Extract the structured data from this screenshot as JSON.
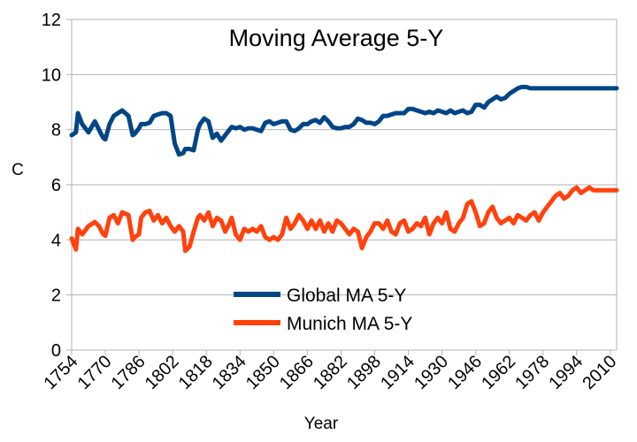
{
  "chart_data": {
    "type": "line",
    "title": "Moving Average 5-Y",
    "xlabel": "Year",
    "ylabel": "C",
    "xlim": [
      1754,
      2013
    ],
    "ylim": [
      0,
      12
    ],
    "y_ticks": [
      0,
      2,
      4,
      6,
      8,
      10,
      12
    ],
    "x_tick_labels": [
      "1754",
      "1770",
      "1786",
      "1802",
      "1818",
      "1834",
      "1850",
      "1866",
      "1882",
      "1898",
      "1914",
      "1930",
      "1946",
      "1962",
      "1978",
      "1994",
      "2010"
    ],
    "grid": "horizontal",
    "legend": "center-bottom",
    "series": [
      {
        "name": "Global MA 5-Y",
        "color": "#004586",
        "x": [
          1754,
          1756,
          1757,
          1759,
          1762,
          1765,
          1767,
          1769,
          1770,
          1772,
          1774,
          1776,
          1778,
          1781,
          1783,
          1784,
          1786,
          1787,
          1789,
          1791,
          1793,
          1795,
          1797,
          1799,
          1801,
          1803,
          1805,
          1807,
          1808,
          1810,
          1812,
          1814,
          1815,
          1817,
          1819,
          1821,
          1823,
          1825,
          1827,
          1829,
          1830,
          1832,
          1834,
          1836,
          1838,
          1840,
          1842,
          1844,
          1846,
          1848,
          1850,
          1852,
          1854,
          1856,
          1858,
          1860,
          1862,
          1864,
          1866,
          1868,
          1870,
          1872,
          1874,
          1876,
          1878,
          1880,
          1882,
          1884,
          1886,
          1888,
          1890,
          1892,
          1894,
          1896,
          1898,
          1900,
          1902,
          1904,
          1906,
          1908,
          1910,
          1912,
          1914,
          1916,
          1918,
          1920,
          1922,
          1924,
          1926,
          1928,
          1930,
          1932,
          1934,
          1936,
          1938,
          1940,
          1942,
          1944,
          1946,
          1948,
          1950,
          1952,
          1954,
          1956,
          1958,
          1960,
          1962,
          1964,
          1966,
          1968,
          1970,
          1972,
          1974,
          1976,
          1978,
          1980,
          1982,
          1984,
          1986,
          1988,
          1990,
          1992,
          1994,
          1996,
          1998,
          2000,
          2002,
          2004,
          2006,
          2008,
          2010,
          2013
        ],
        "values": [
          7.8,
          7.9,
          8.6,
          8.2,
          7.9,
          8.3,
          8.0,
          7.7,
          7.65,
          8.2,
          8.5,
          8.6,
          8.7,
          8.5,
          7.8,
          7.85,
          8.05,
          8.2,
          8.2,
          8.25,
          8.5,
          8.55,
          8.6,
          8.6,
          8.5,
          7.5,
          7.1,
          7.15,
          7.3,
          7.3,
          7.25,
          8.0,
          8.2,
          8.4,
          8.3,
          7.7,
          7.85,
          7.6,
          7.8,
          8.0,
          8.1,
          8.05,
          8.1,
          8.0,
          8.05,
          8.05,
          8.0,
          7.95,
          8.25,
          8.3,
          8.2,
          8.25,
          8.3,
          8.3,
          8.0,
          7.95,
          8.05,
          8.2,
          8.2,
          8.3,
          8.35,
          8.25,
          8.45,
          8.3,
          8.1,
          8.05,
          8.05,
          8.1,
          8.1,
          8.2,
          8.4,
          8.35,
          8.25,
          8.25,
          8.2,
          8.3,
          8.5,
          8.5,
          8.55,
          8.6,
          8.6,
          8.6,
          8.75,
          8.75,
          8.7,
          8.65,
          8.6,
          8.65,
          8.6,
          8.7,
          8.65,
          8.6,
          8.7,
          8.6,
          8.65,
          8.7,
          8.6,
          8.65,
          8.9,
          8.9,
          8.8,
          9.0,
          9.1,
          9.2,
          9.1,
          9.15,
          9.3,
          9.4,
          9.5,
          9.55,
          9.55,
          9.5,
          9.5,
          9.5,
          9.5,
          9.5,
          9.5,
          9.5,
          9.5,
          9.5,
          9.5,
          9.5,
          9.5,
          9.5,
          9.5,
          9.5,
          9.5,
          9.5,
          9.5,
          9.5,
          9.5,
          9.5
        ]
      },
      {
        "name": "Munich MA 5-Y",
        "color": "#ff420e",
        "x": [
          1754,
          1756,
          1757,
          1759,
          1762,
          1765,
          1767,
          1769,
          1770,
          1772,
          1774,
          1776,
          1778,
          1781,
          1783,
          1784,
          1786,
          1787,
          1789,
          1791,
          1793,
          1795,
          1797,
          1799,
          1801,
          1803,
          1805,
          1807,
          1808,
          1810,
          1812,
          1814,
          1815,
          1817,
          1819,
          1821,
          1823,
          1825,
          1827,
          1829,
          1830,
          1832,
          1834,
          1836,
          1838,
          1840,
          1842,
          1844,
          1846,
          1848,
          1850,
          1852,
          1854,
          1856,
          1858,
          1860,
          1862,
          1864,
          1866,
          1868,
          1870,
          1872,
          1874,
          1876,
          1878,
          1880,
          1882,
          1884,
          1886,
          1888,
          1890,
          1892,
          1894,
          1896,
          1898,
          1900,
          1902,
          1904,
          1906,
          1908,
          1910,
          1912,
          1914,
          1916,
          1918,
          1920,
          1922,
          1924,
          1926,
          1928,
          1930,
          1932,
          1934,
          1936,
          1938,
          1940,
          1942,
          1944,
          1946,
          1948,
          1950,
          1952,
          1954,
          1956,
          1958,
          1960,
          1962,
          1964,
          1966,
          1968,
          1970,
          1972,
          1974,
          1976,
          1978,
          1980,
          1982,
          1984,
          1986,
          1988,
          1990,
          1992,
          1994,
          1996,
          1998,
          2000,
          2002,
          2004,
          2006,
          2008,
          2010,
          2013
        ],
        "values": [
          4.05,
          3.65,
          4.4,
          4.2,
          4.5,
          4.65,
          4.5,
          4.2,
          4.15,
          4.8,
          4.9,
          4.6,
          5.0,
          4.9,
          4.0,
          4.1,
          4.2,
          4.8,
          5.0,
          5.05,
          4.7,
          4.9,
          4.6,
          4.8,
          4.5,
          4.3,
          4.5,
          4.3,
          3.6,
          3.75,
          4.3,
          4.8,
          4.9,
          4.7,
          5.0,
          4.5,
          4.8,
          4.7,
          4.3,
          4.6,
          4.8,
          4.2,
          4.0,
          4.4,
          4.3,
          4.4,
          4.3,
          4.5,
          4.1,
          4.0,
          4.1,
          4.0,
          4.2,
          4.8,
          4.4,
          4.6,
          4.9,
          4.7,
          4.4,
          4.7,
          4.4,
          4.7,
          4.3,
          4.6,
          4.3,
          4.7,
          4.6,
          4.4,
          4.2,
          4.4,
          4.3,
          3.7,
          4.1,
          4.3,
          4.6,
          4.6,
          4.4,
          4.7,
          4.3,
          4.2,
          4.6,
          4.7,
          4.3,
          4.4,
          4.6,
          4.5,
          4.8,
          4.2,
          4.6,
          4.8,
          4.6,
          5.0,
          4.4,
          4.3,
          4.6,
          4.8,
          5.3,
          5.4,
          5.0,
          4.5,
          4.6,
          5.0,
          5.2,
          4.8,
          4.6,
          4.7,
          4.8,
          4.6,
          4.9,
          4.8,
          4.7,
          4.9,
          5.0,
          4.7,
          5.0,
          5.2,
          5.4,
          5.6,
          5.7,
          5.5,
          5.6,
          5.8,
          5.9,
          5.7,
          5.8,
          5.9,
          5.8,
          5.8,
          5.8,
          5.8,
          5.8,
          5.8
        ]
      }
    ]
  }
}
